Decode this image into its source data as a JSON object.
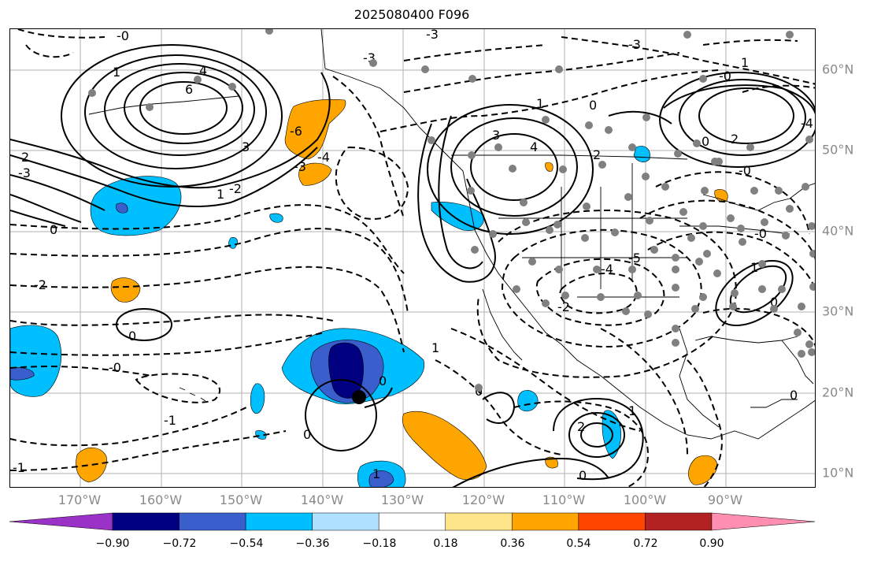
{
  "title": "2025080400 F096",
  "axes": {
    "lon_labels": [
      "170°W",
      "160°W",
      "150°W",
      "140°W",
      "130°W",
      "120°W",
      "110°W",
      "100°W",
      "90°W"
    ],
    "lat_labels": [
      "60°N",
      "50°N",
      "40°N",
      "30°N",
      "20°N",
      "10°N"
    ]
  },
  "colorbar": {
    "tick_labels": [
      "−0.90",
      "−0.72",
      "−0.54",
      "−0.36",
      "−0.18",
      "0.18",
      "0.36",
      "0.54",
      "0.72",
      "0.90"
    ],
    "colors": [
      "#9b32c8",
      "#000080",
      "#3a5fcd",
      "#00bfff",
      "#b0e0ff",
      "#ffffff",
      "#ffe58a",
      "#ffa500",
      "#ff4500",
      "#b22222",
      "#ff8fb0"
    ]
  },
  "contour_labels": [
    "4",
    "6",
    "3",
    "2",
    "1",
    "0",
    "-0",
    "-2",
    "-1",
    "-3",
    "-4",
    "-5",
    "-6"
  ],
  "colors": {
    "grid": "#b0b0b0",
    "station": "#808080",
    "coast": "#000000"
  }
}
